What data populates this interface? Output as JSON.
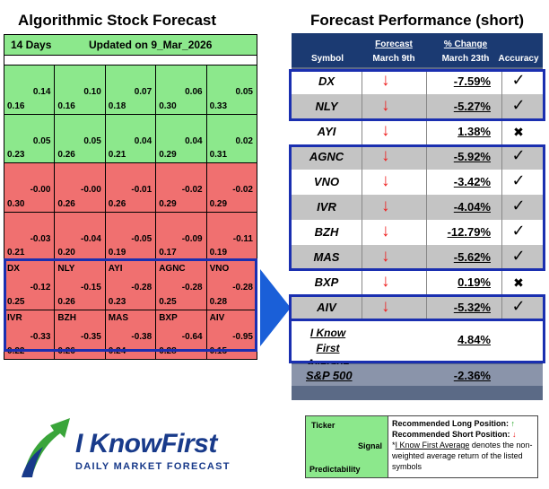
{
  "left_title": "Algorithmic Stock Forecast",
  "right_title": "Forecast Performance (short)",
  "heatmap": {
    "days": "14 Days",
    "updated": "Updated on 9_Mar_2026",
    "colors": {
      "green": "#8ce88c",
      "red": "#f07070",
      "highlight": "#1a2fb0"
    },
    "rows": [
      [
        {
          "symbol": "",
          "signal": "0.14",
          "pred": "0.16",
          "color": "green"
        },
        {
          "symbol": "",
          "signal": "0.10",
          "pred": "0.16",
          "color": "green"
        },
        {
          "symbol": "",
          "signal": "0.07",
          "pred": "0.18",
          "color": "green"
        },
        {
          "symbol": "",
          "signal": "0.06",
          "pred": "0.30",
          "color": "green"
        },
        {
          "symbol": "",
          "signal": "0.05",
          "pred": "0.33",
          "color": "green"
        }
      ],
      [
        {
          "symbol": "",
          "signal": "0.05",
          "pred": "0.23",
          "color": "green"
        },
        {
          "symbol": "",
          "signal": "0.05",
          "pred": "0.26",
          "color": "green"
        },
        {
          "symbol": "",
          "signal": "0.04",
          "pred": "0.21",
          "color": "green"
        },
        {
          "symbol": "",
          "signal": "0.04",
          "pred": "0.29",
          "color": "green"
        },
        {
          "symbol": "",
          "signal": "0.02",
          "pred": "0.31",
          "color": "green"
        }
      ],
      [
        {
          "symbol": "",
          "signal": "-0.00",
          "pred": "0.30",
          "color": "red"
        },
        {
          "symbol": "",
          "signal": "-0.00",
          "pred": "0.26",
          "color": "red"
        },
        {
          "symbol": "",
          "signal": "-0.01",
          "pred": "0.26",
          "color": "red"
        },
        {
          "symbol": "",
          "signal": "-0.02",
          "pred": "0.29",
          "color": "red"
        },
        {
          "symbol": "",
          "signal": "-0.02",
          "pred": "0.29",
          "color": "red"
        }
      ],
      [
        {
          "symbol": "",
          "signal": "-0.03",
          "pred": "0.21",
          "color": "red"
        },
        {
          "symbol": "",
          "signal": "-0.04",
          "pred": "0.20",
          "color": "red"
        },
        {
          "symbol": "",
          "signal": "-0.05",
          "pred": "0.19",
          "color": "red"
        },
        {
          "symbol": "",
          "signal": "-0.09",
          "pred": "0.17",
          "color": "red"
        },
        {
          "symbol": "",
          "signal": "-0.11",
          "pred": "0.19",
          "color": "red"
        }
      ],
      [
        {
          "symbol": "DX",
          "signal": "-0.12",
          "pred": "0.25",
          "color": "red"
        },
        {
          "symbol": "NLY",
          "signal": "-0.15",
          "pred": "0.26",
          "color": "red"
        },
        {
          "symbol": "AYI",
          "signal": "-0.28",
          "pred": "0.23",
          "color": "red"
        },
        {
          "symbol": "AGNC",
          "signal": "-0.28",
          "pred": "0.25",
          "color": "red"
        },
        {
          "symbol": "VNO",
          "signal": "-0.28",
          "pred": "0.28",
          "color": "red"
        }
      ],
      [
        {
          "symbol": "IVR",
          "signal": "-0.33",
          "pred": "0.22",
          "color": "red"
        },
        {
          "symbol": "BZH",
          "signal": "-0.35",
          "pred": "0.26",
          "color": "red"
        },
        {
          "symbol": "MAS",
          "signal": "-0.38",
          "pred": "0.24",
          "color": "red"
        },
        {
          "symbol": "BXP",
          "signal": "-0.64",
          "pred": "0.28",
          "color": "red"
        },
        {
          "symbol": "AIV",
          "signal": "-0.95",
          "pred": "0.15",
          "color": "red"
        }
      ]
    ]
  },
  "performance": {
    "header": {
      "symbol": "Symbol",
      "forecast": "Forecast",
      "forecast_date": "March 9th",
      "change": "% Change",
      "change_date": "March 23th",
      "accuracy": "Accuracy"
    },
    "rows": [
      {
        "symbol": "DX",
        "direction": "↓",
        "change": "-7.59%",
        "accuracy": "✓",
        "correct": true
      },
      {
        "symbol": "NLY",
        "direction": "↓",
        "change": "-5.27%",
        "accuracy": "✓",
        "correct": true
      },
      {
        "symbol": "AYI",
        "direction": "↓",
        "change": "1.38%",
        "accuracy": "✖",
        "correct": false
      },
      {
        "symbol": "AGNC",
        "direction": "↓",
        "change": "-5.92%",
        "accuracy": "✓",
        "correct": true
      },
      {
        "symbol": "VNO",
        "direction": "↓",
        "change": "-3.42%",
        "accuracy": "✓",
        "correct": true
      },
      {
        "symbol": "IVR",
        "direction": "↓",
        "change": "-4.04%",
        "accuracy": "✓",
        "correct": true
      },
      {
        "symbol": "BZH",
        "direction": "↓",
        "change": "-12.79%",
        "accuracy": "✓",
        "correct": true
      },
      {
        "symbol": "MAS",
        "direction": "↓",
        "change": "-5.62%",
        "accuracy": "✓",
        "correct": true
      },
      {
        "symbol": "BXP",
        "direction": "↓",
        "change": "0.19%",
        "accuracy": "✖",
        "correct": false
      },
      {
        "symbol": "AIV",
        "direction": "↓",
        "change": "-5.32%",
        "accuracy": "✓",
        "correct": true
      }
    ],
    "average_label_1": "I Know First",
    "average_label_2": "Average",
    "average_value": "4.84%",
    "sp_label": "S&P 500",
    "sp_value": "-2.36%",
    "colors": {
      "header": "#1b3a72",
      "down_arrow": "#ee2020",
      "box": "#1a2fb0"
    }
  },
  "logo": {
    "brand": "I KnowFirst",
    "tagline": "DAILY MARKET FORECAST",
    "icon": "bull-arrow-logo-icon"
  },
  "legend": {
    "ticker": "Ticker",
    "signal": "Signal",
    "predictability": "Predictability",
    "long_text": "Recommended Long Position:",
    "long_arrow": "↑",
    "short_text": "Recommended Short Position:",
    "short_arrow": "↓",
    "note_link": "I Know First Average",
    "note_rest": " denotes the non-weighted average return of the listed symbols"
  }
}
